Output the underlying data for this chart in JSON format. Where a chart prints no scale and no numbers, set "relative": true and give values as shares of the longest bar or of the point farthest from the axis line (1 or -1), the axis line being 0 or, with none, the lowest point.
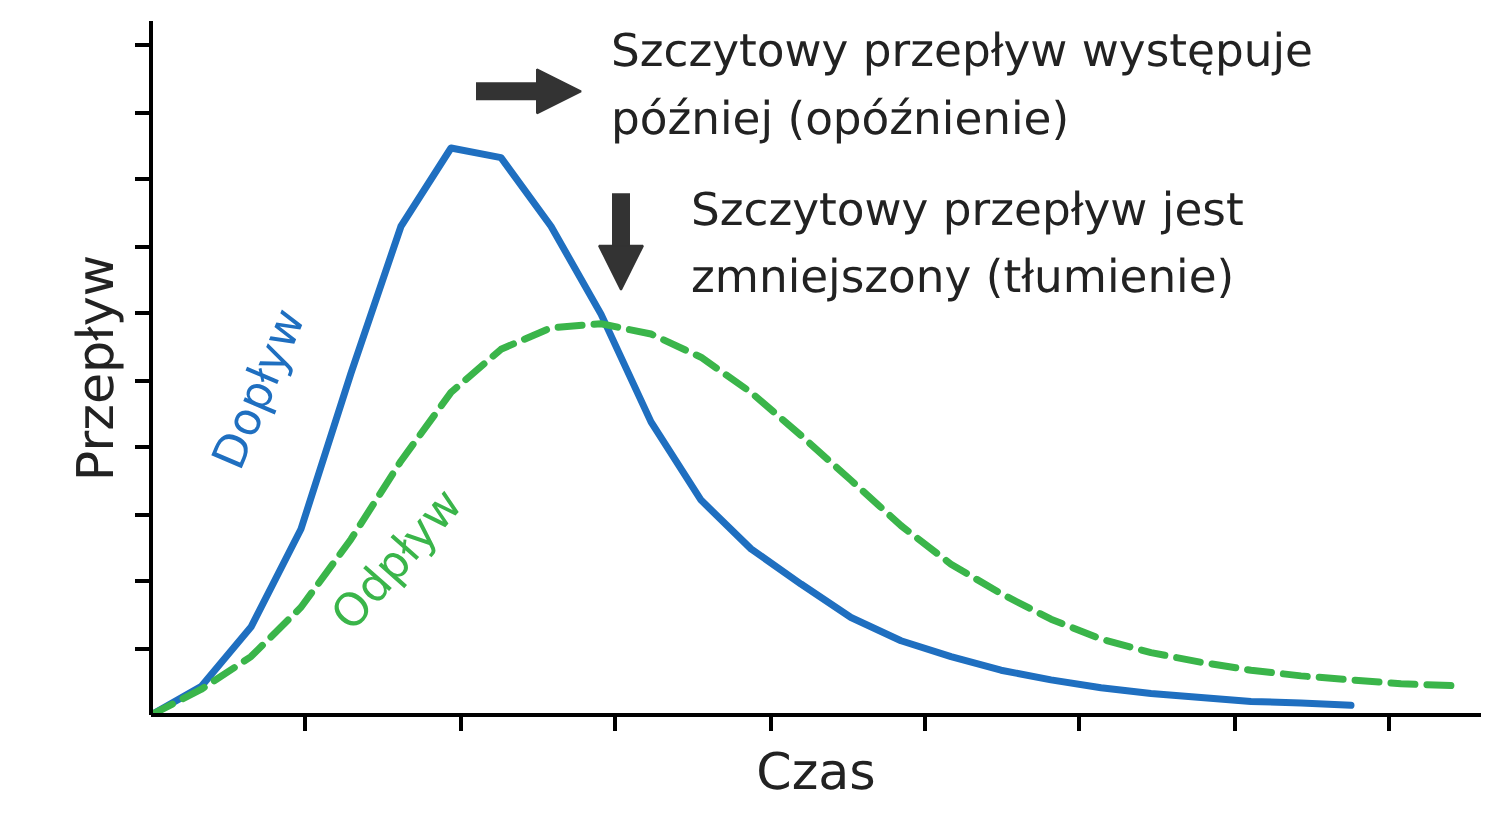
{
  "chart_data": {
    "type": "line",
    "relative": true,
    "xlabel": "Czas",
    "ylabel": "Przepływ",
    "grid": false,
    "marker": "none",
    "categories": [
      null,
      null,
      null,
      null,
      null,
      null,
      null,
      null,
      null,
      null,
      null,
      null,
      null,
      null,
      null,
      null,
      null,
      null,
      null,
      null,
      null,
      null,
      null,
      null,
      null,
      null,
      null
    ],
    "series": [
      {
        "name": "Dopływ",
        "color": "#1f6fc0",
        "line_style": "solid",
        "values": [
          0,
          0.05,
          0.155,
          0.328,
          0.603,
          0.862,
          1.0,
          0.983,
          0.862,
          0.707,
          0.517,
          0.379,
          0.293,
          0.231,
          0.172,
          0.131,
          0.103,
          0.079,
          0.062,
          0.048,
          0.038,
          0.031,
          0.024,
          0.021,
          0.017,
          null,
          null
        ]
      },
      {
        "name": "Odpływ",
        "color": "#3ab54a",
        "line_style": "dashed",
        "values": [
          0,
          0.045,
          0.103,
          0.19,
          0.31,
          0.448,
          0.569,
          0.645,
          0.683,
          0.69,
          0.672,
          0.631,
          0.569,
          0.493,
          0.414,
          0.334,
          0.266,
          0.214,
          0.169,
          0.134,
          0.11,
          0.093,
          0.079,
          0.069,
          0.062,
          0.055,
          0.052
        ]
      }
    ],
    "annotations": [
      "Szczytowy przepływ występuje\npóźniej (opóźnienie)",
      "Szczytowy przepływ jest\nzmniejszony (tłumienie)"
    ]
  }
}
